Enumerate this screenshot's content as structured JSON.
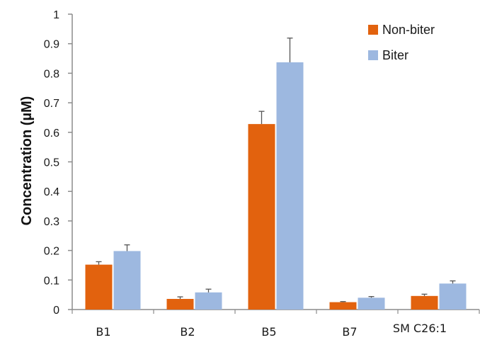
{
  "chart_data": {
    "type": "bar",
    "title": "",
    "xlabel": "",
    "ylabel": "Concentration (µM)",
    "categories": [
      "B1",
      "B2",
      "B5",
      "B7",
      "SM C26:1"
    ],
    "ylim": [
      0,
      1
    ],
    "yticks": [
      0,
      0.1,
      0.2,
      0.3,
      0.4,
      0.5,
      0.6,
      0.7,
      0.8,
      0.9,
      1
    ],
    "ytick_labels": [
      "0",
      "0.1",
      "0.2",
      "0.3",
      "0.4",
      "0.5",
      "0.6",
      "0.7",
      "0.8",
      "0.9",
      "1"
    ],
    "grid": false,
    "legend_position": "top-right",
    "series": [
      {
        "name": "Non-biter",
        "color": "#e2620e",
        "values": [
          0.152,
          0.036,
          0.628,
          0.025,
          0.046
        ],
        "errors": [
          0.01,
          0.007,
          0.043,
          0.002,
          0.006
        ]
      },
      {
        "name": "Biter",
        "color": "#9db8e0",
        "values": [
          0.198,
          0.058,
          0.837,
          0.04,
          0.088
        ],
        "errors": [
          0.021,
          0.011,
          0.082,
          0.004,
          0.009
        ]
      }
    ]
  }
}
